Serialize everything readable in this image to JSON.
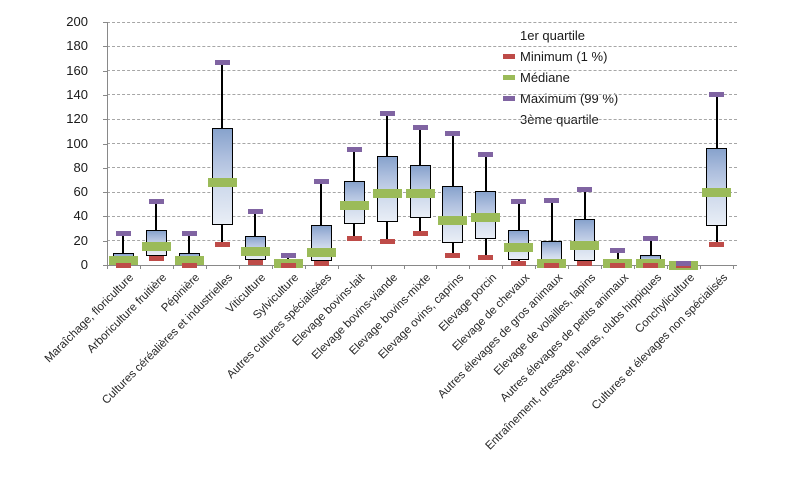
{
  "chart_data": {
    "type": "boxplot",
    "title": "",
    "xlabel": "",
    "ylabel": "",
    "ylim": [
      0,
      200
    ],
    "ytick_step": 20,
    "yticks": [
      0,
      20,
      40,
      60,
      80,
      100,
      120,
      140,
      160,
      180,
      200
    ],
    "grid": "horizontal-dashed",
    "legend_position": "top-right-inside",
    "legend": {
      "items": [
        {
          "label": "1er quartile",
          "marker_color": null
        },
        {
          "label": "Minimum (1 %)",
          "marker_color": "#be4b48"
        },
        {
          "label": "Médiane",
          "marker_color": "#9bbb59"
        },
        {
          "label": "Maximum (99 %)",
          "marker_color": "#8064a2"
        },
        {
          "label": "3ème quartile",
          "marker_color": null
        }
      ]
    },
    "categories": [
      "Maraîchage, floriculture",
      "Arboriculture fruitière",
      "Pépinière",
      "Cultures céréalières et industrielles",
      "Viticulture",
      "Sylviculture",
      "Autres cultures spécialisées",
      "Elevage bovins-lait",
      "Elevage bovins-viande",
      "Elevage bovins-mixte",
      "Elevage ovins, caprins",
      "Elevage porcin",
      "Elevage de chevaux",
      "Autres élevages de gros animaux",
      "Elevage de volailles, lapins",
      "Autres élevages de petits animaux",
      "Entraînement, dressage, haras, clubs hippiques",
      "Conchyliculture",
      "Cultures et élevages non spécialisés"
    ],
    "series": [
      {
        "name": "Maraîchage, floriculture",
        "min": 0,
        "q1": 1,
        "median": 4,
        "q3": 10,
        "max": 26
      },
      {
        "name": "Arboriculture fruitière",
        "min": 5,
        "q1": 7,
        "median": 15,
        "q3": 29,
        "max": 52
      },
      {
        "name": "Pépinière",
        "min": 0,
        "q1": 1,
        "median": 4,
        "q3": 10,
        "max": 26
      },
      {
        "name": "Cultures céréalières et industrielles",
        "min": 17,
        "q1": 33,
        "median": 68,
        "q3": 113,
        "max": 167
      },
      {
        "name": "Viticulture",
        "min": 2,
        "q1": 4,
        "median": 11,
        "q3": 24,
        "max": 44
      },
      {
        "name": "Sylviculture",
        "min": 0,
        "q1": 0,
        "median": 1,
        "q3": 2,
        "max": 8
      },
      {
        "name": "Autres cultures spécialisées",
        "min": 1,
        "q1": 3,
        "median": 10,
        "q3": 33,
        "max": 69
      },
      {
        "name": "Elevage bovins-lait",
        "min": 22,
        "q1": 34,
        "median": 49,
        "q3": 69,
        "max": 95
      },
      {
        "name": "Elevage bovins-viande",
        "min": 19,
        "q1": 35,
        "median": 59,
        "q3": 90,
        "max": 125
      },
      {
        "name": "Elevage bovins-mixte",
        "min": 26,
        "q1": 39,
        "median": 59,
        "q3": 82,
        "max": 113
      },
      {
        "name": "Elevage ovins, caprins",
        "min": 8,
        "q1": 18,
        "median": 37,
        "q3": 65,
        "max": 108
      },
      {
        "name": "Elevage porcin",
        "min": 6,
        "q1": 21,
        "median": 39,
        "q3": 61,
        "max": 91
      },
      {
        "name": "Elevage de chevaux",
        "min": 1,
        "q1": 4,
        "median": 14,
        "q3": 29,
        "max": 52
      },
      {
        "name": "Autres élevages de gros animaux",
        "min": 0,
        "q1": 0,
        "median": 1,
        "q3": 20,
        "max": 53
      },
      {
        "name": "Elevage de volailles, lapins",
        "min": 1,
        "q1": 3,
        "median": 16,
        "q3": 38,
        "max": 62
      },
      {
        "name": "Autres élevages de petits animaux",
        "min": 0,
        "q1": 0,
        "median": 1,
        "q3": 3,
        "max": 12
      },
      {
        "name": "Entraînement, dressage, haras, clubs hippiques",
        "min": 0,
        "q1": 0,
        "median": 1,
        "q3": 8,
        "max": 22
      },
      {
        "name": "Conchyliculture",
        "min": 0,
        "q1": 0,
        "median": 0,
        "q3": 1,
        "max": 1
      },
      {
        "name": "Cultures et élevages non spécialisés",
        "min": 17,
        "q1": 32,
        "median": 60,
        "q3": 96,
        "max": 140
      }
    ]
  },
  "colors": {
    "minimum": "#be4b48",
    "median": "#9bbb59",
    "maximum": "#8064a2",
    "box_border": "#000000",
    "box_fill_top": "#87a2cc",
    "box_fill_bottom": "#e9eef6",
    "gridline": "#a6a6a6",
    "axis": "#898989",
    "text": "#1a1a1a"
  }
}
